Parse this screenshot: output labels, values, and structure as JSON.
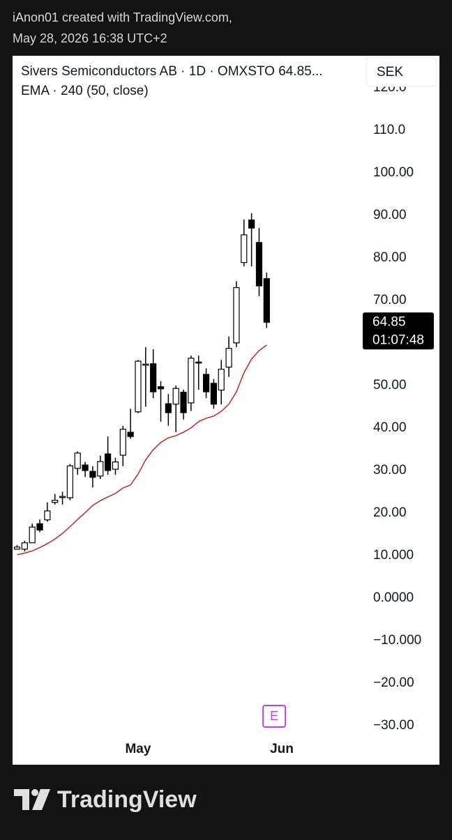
{
  "header": {
    "line1": "iAnon01 created with TradingView.com,",
    "line2": "May 28, 2026 16:38 UTC+2"
  },
  "footer": {
    "brand": "TradingView"
  },
  "chart_data": {
    "type": "candlestick",
    "title": "Sivers Semiconductors AB · 1D · OMXSTO  64.85...",
    "currency": "SEK",
    "up_color": "#ffffff",
    "down_color": "#000000",
    "border_color": "#000000",
    "open": [
      11.5,
      11.5,
      13,
      17.5,
      18.4,
      22.5,
      23.7,
      23.6,
      30.5,
      31.3,
      29.8,
      28.7,
      33.9,
      30.3,
      33.6,
      39,
      43.8,
      54.8,
      55.1,
      49.7,
      45.7,
      45.6,
      48.4,
      45.9,
      55.5,
      52.6,
      50.5,
      48.9,
      54.3,
      60,
      78.9,
      88.9,
      83.6,
      75.1
    ],
    "high": [
      12.5,
      13.5,
      17.5,
      18.5,
      22.5,
      24.5,
      25,
      31.5,
      34.5,
      32,
      31,
      33.5,
      38,
      33,
      40.5,
      44.5,
      56,
      59,
      58.5,
      51,
      48,
      50,
      49,
      57,
      57,
      54,
      51.5,
      56,
      61.5,
      74.5,
      89,
      90.5,
      87,
      76.5
    ],
    "low": [
      11.5,
      11,
      13,
      15.5,
      18,
      22,
      22,
      23,
      29,
      28.5,
      26,
      28,
      29,
      29,
      31,
      37.5,
      43.5,
      45,
      47,
      41.5,
      40.5,
      39,
      42,
      44,
      49,
      47,
      44.5,
      45.5,
      52,
      59,
      78,
      78,
      71,
      63.5
    ],
    "close": [
      12,
      13,
      16.7,
      16,
      20.5,
      23,
      23.9,
      31.1,
      34.1,
      30,
      28.4,
      32.1,
      30,
      32,
      39.7,
      38,
      55.7,
      55,
      48.5,
      49.2,
      43.6,
      49.3,
      43.6,
      56.4,
      55.3,
      48.5,
      45.6,
      53.8,
      58.7,
      73,
      85.4,
      87,
      73.4,
      64.85
    ],
    "ema": {
      "name": "EMA · 240 (50, close)",
      "color": "#c62828",
      "values": [
        10.2,
        10.6,
        11.1,
        11.9,
        12.8,
        13.9,
        15.2,
        16.8,
        18.5,
        20.1,
        21.8,
        22.9,
        23.8,
        24.6,
        25.9,
        26.6,
        29.2,
        32.5,
        34.9,
        36.6,
        37.7,
        38.2,
        39,
        40,
        41.5,
        42.3,
        42.8,
        43.9,
        45.6,
        48.5,
        53,
        56.2,
        58.2,
        59.5
      ]
    },
    "last_price": 64.85,
    "countdown": "01:07:48",
    "events": [
      {
        "x": 34,
        "label": "E"
      }
    ],
    "xlim": [
      -0.6,
      45.7
    ],
    "xticks": [
      {
        "value": 16,
        "label": "May"
      },
      {
        "value": 35,
        "label": "Jun"
      }
    ],
    "ylim": [
      -33.1,
      127.5
    ],
    "yticks": [
      {
        "value": 120,
        "label": "120.0"
      },
      {
        "value": 110,
        "label": "110.0"
      },
      {
        "value": 100,
        "label": "100.00"
      },
      {
        "value": 90,
        "label": "90.00"
      },
      {
        "value": 80,
        "label": "80.00"
      },
      {
        "value": 70,
        "label": "70.00"
      },
      {
        "value": 50,
        "label": "50.00"
      },
      {
        "value": 40,
        "label": "40.00"
      },
      {
        "value": 30,
        "label": "30.00"
      },
      {
        "value": 20,
        "label": "20.00"
      },
      {
        "value": 10,
        "label": "10.000"
      },
      {
        "value": 0,
        "label": "0.0000"
      },
      {
        "value": -10,
        "label": "−10.000"
      },
      {
        "value": -20,
        "label": "−20.00"
      },
      {
        "value": -30,
        "label": "−30.00"
      }
    ]
  }
}
